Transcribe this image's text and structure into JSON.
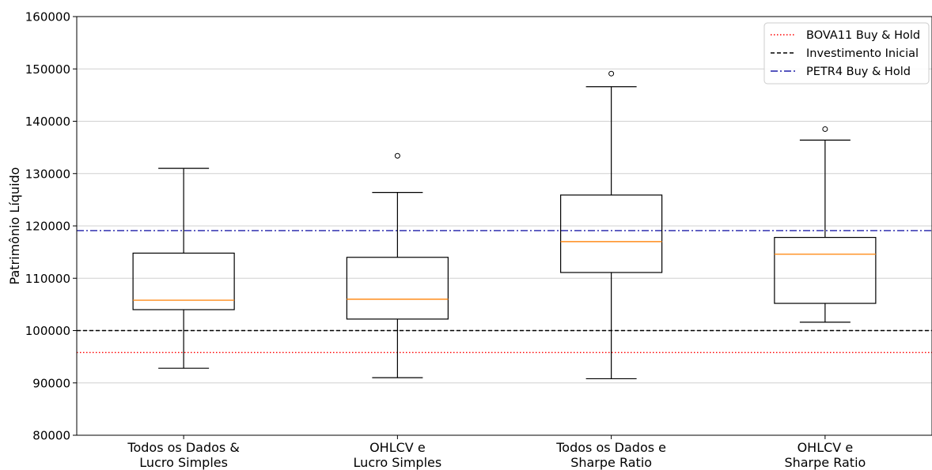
{
  "chart_data": {
    "type": "box",
    "title": "",
    "xlabel": "",
    "ylabel": "Patrimônio Líquido",
    "ylim": [
      80000,
      160000
    ],
    "yticks": [
      80000,
      90000,
      100000,
      110000,
      120000,
      130000,
      140000,
      150000,
      160000
    ],
    "grid": "horizontal",
    "legend_position": "top-right",
    "categories": [
      [
        "Todos os Dados &",
        "Lucro Simples"
      ],
      [
        "OHLCV e",
        "Lucro Simples"
      ],
      [
        "Todos os Dados e",
        "Sharpe Ratio"
      ],
      [
        "OHLCV e",
        "Sharpe Ratio"
      ]
    ],
    "boxes": [
      {
        "whisker_low": 92800,
        "q1": 104000,
        "median": 105800,
        "q3": 114800,
        "whisker_high": 131000,
        "outliers": []
      },
      {
        "whisker_low": 91000,
        "q1": 102200,
        "median": 106000,
        "q3": 114000,
        "whisker_high": 126400,
        "outliers": [
          133400
        ]
      },
      {
        "whisker_low": 90800,
        "q1": 111100,
        "median": 117000,
        "q3": 125900,
        "whisker_high": 146600,
        "outliers": [
          149100
        ]
      },
      {
        "whisker_low": 101600,
        "q1": 105200,
        "median": 114600,
        "q3": 117800,
        "whisker_high": 136400,
        "outliers": [
          138500
        ]
      }
    ],
    "reference_lines": [
      {
        "name": "BOVA11 Buy & Hold",
        "value": 95800,
        "color": "#ff0000",
        "style": "dotted"
      },
      {
        "name": "Investimento Inicial",
        "value": 100000,
        "color": "#000000",
        "style": "dashed"
      },
      {
        "name": "PETR4 Buy & Hold",
        "value": 119100,
        "color": "#1f1fa8",
        "style": "dashdot"
      }
    ],
    "colors": {
      "median": "#ff8c1a",
      "box": "#000000",
      "grid": "#d0d0d0"
    }
  }
}
